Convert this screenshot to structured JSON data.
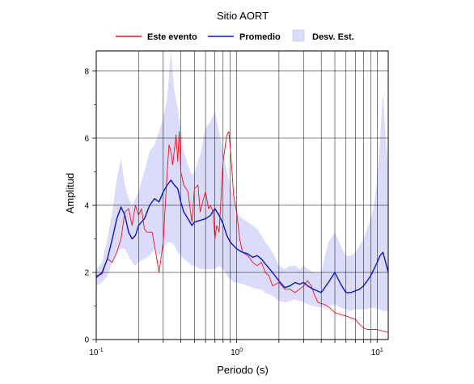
{
  "chart_data": {
    "type": "line",
    "title": "Sitio AORT",
    "xlabel": "Periodo (s)",
    "ylabel": "Amplitud",
    "xscale": "log",
    "xlim": [
      0.1,
      12
    ],
    "ylim": [
      0,
      8.6
    ],
    "grid": true,
    "legend": {
      "placement": "top",
      "entries": [
        "Este evento",
        "Promedio",
        "Desv. Est."
      ]
    },
    "x_tick_labels": [
      {
        "value": 0.1,
        "base": "10",
        "exp": "-1"
      },
      {
        "value": 1,
        "base": "10",
        "exp": "0"
      },
      {
        "value": 10,
        "base": "10",
        "exp": "1"
      }
    ],
    "y_tick_labels": [
      "0",
      "2",
      "4",
      "6",
      "8"
    ],
    "y_ticks": [
      0,
      2,
      4,
      6,
      8
    ],
    "series": [
      {
        "name": "Este evento",
        "color": "#e8151f",
        "points": [
          [
            0.1,
            1.9
          ],
          [
            0.11,
            1.95
          ],
          [
            0.12,
            2.4
          ],
          [
            0.13,
            2.3
          ],
          [
            0.14,
            2.6
          ],
          [
            0.15,
            3.0
          ],
          [
            0.16,
            3.8
          ],
          [
            0.17,
            3.9
          ],
          [
            0.18,
            3.4
          ],
          [
            0.19,
            4.0
          ],
          [
            0.2,
            3.7
          ],
          [
            0.21,
            3.9
          ],
          [
            0.22,
            3.3
          ],
          [
            0.23,
            3.2
          ],
          [
            0.25,
            3.2
          ],
          [
            0.27,
            2.4
          ],
          [
            0.28,
            2.0
          ],
          [
            0.3,
            2.9
          ],
          [
            0.32,
            5.0
          ],
          [
            0.33,
            5.8
          ],
          [
            0.34,
            5.6
          ],
          [
            0.35,
            5.2
          ],
          [
            0.37,
            6.1
          ],
          [
            0.38,
            5.3
          ],
          [
            0.39,
            6.2
          ],
          [
            0.4,
            5.0
          ],
          [
            0.42,
            4.6
          ],
          [
            0.45,
            4.4
          ],
          [
            0.48,
            3.5
          ],
          [
            0.5,
            4.5
          ],
          [
            0.53,
            4.6
          ],
          [
            0.55,
            3.8
          ],
          [
            0.58,
            4.2
          ],
          [
            0.6,
            4.4
          ],
          [
            0.63,
            3.9
          ],
          [
            0.65,
            4.0
          ],
          [
            0.68,
            3.8
          ],
          [
            0.7,
            3.0
          ],
          [
            0.72,
            3.4
          ],
          [
            0.75,
            3.2
          ],
          [
            0.78,
            4.5
          ],
          [
            0.8,
            5.3
          ],
          [
            0.85,
            6.1
          ],
          [
            0.88,
            6.2
          ],
          [
            0.92,
            5.2
          ],
          [
            0.95,
            4.3
          ],
          [
            1.0,
            3.8
          ],
          [
            1.05,
            3.0
          ],
          [
            1.1,
            2.6
          ],
          [
            1.2,
            2.5
          ],
          [
            1.3,
            2.3
          ],
          [
            1.4,
            2.2
          ],
          [
            1.5,
            2.3
          ],
          [
            1.6,
            2.0
          ],
          [
            1.7,
            1.9
          ],
          [
            1.8,
            1.6
          ],
          [
            2.0,
            1.7
          ],
          [
            2.2,
            1.5
          ],
          [
            2.4,
            1.5
          ],
          [
            2.6,
            1.4
          ],
          [
            2.8,
            1.5
          ],
          [
            3.0,
            1.6
          ],
          [
            3.2,
            1.75
          ],
          [
            3.4,
            1.6
          ],
          [
            3.6,
            1.3
          ],
          [
            3.8,
            1.1
          ],
          [
            4.2,
            1.05
          ],
          [
            4.6,
            0.95
          ],
          [
            5.0,
            0.8
          ],
          [
            5.5,
            0.75
          ],
          [
            6.0,
            0.7
          ],
          [
            6.5,
            0.65
          ],
          [
            7.0,
            0.6
          ],
          [
            7.5,
            0.45
          ],
          [
            8.0,
            0.35
          ],
          [
            8.5,
            0.3
          ],
          [
            9.0,
            0.3
          ],
          [
            10.0,
            0.3
          ],
          [
            11.0,
            0.25
          ],
          [
            12.0,
            0.22
          ]
        ]
      },
      {
        "name": "Promedio",
        "color": "#0a16c8",
        "points": [
          [
            0.1,
            1.85
          ],
          [
            0.11,
            2.0
          ],
          [
            0.12,
            2.4
          ],
          [
            0.13,
            3.0
          ],
          [
            0.14,
            3.6
          ],
          [
            0.15,
            3.95
          ],
          [
            0.16,
            3.7
          ],
          [
            0.17,
            3.2
          ],
          [
            0.18,
            3.0
          ],
          [
            0.19,
            3.1
          ],
          [
            0.2,
            3.4
          ],
          [
            0.22,
            3.6
          ],
          [
            0.24,
            4.0
          ],
          [
            0.26,
            4.2
          ],
          [
            0.28,
            4.1
          ],
          [
            0.3,
            4.4
          ],
          [
            0.32,
            4.6
          ],
          [
            0.34,
            4.75
          ],
          [
            0.36,
            4.6
          ],
          [
            0.38,
            4.5
          ],
          [
            0.4,
            4.1
          ],
          [
            0.42,
            3.8
          ],
          [
            0.45,
            3.6
          ],
          [
            0.48,
            3.4
          ],
          [
            0.5,
            3.5
          ],
          [
            0.55,
            3.55
          ],
          [
            0.6,
            3.6
          ],
          [
            0.65,
            3.7
          ],
          [
            0.7,
            3.9
          ],
          [
            0.75,
            3.7
          ],
          [
            0.8,
            3.45
          ],
          [
            0.85,
            3.1
          ],
          [
            0.9,
            2.9
          ],
          [
            0.95,
            2.8
          ],
          [
            1.0,
            2.7
          ],
          [
            1.1,
            2.6
          ],
          [
            1.2,
            2.55
          ],
          [
            1.3,
            2.45
          ],
          [
            1.4,
            2.5
          ],
          [
            1.5,
            2.4
          ],
          [
            1.6,
            2.25
          ],
          [
            1.8,
            2.0
          ],
          [
            2.0,
            1.75
          ],
          [
            2.2,
            1.55
          ],
          [
            2.4,
            1.6
          ],
          [
            2.6,
            1.7
          ],
          [
            2.8,
            1.65
          ],
          [
            3.0,
            1.7
          ],
          [
            3.2,
            1.6
          ],
          [
            3.5,
            1.5
          ],
          [
            4.0,
            1.4
          ],
          [
            4.5,
            1.7
          ],
          [
            5.0,
            2.0
          ],
          [
            5.5,
            1.65
          ],
          [
            6.0,
            1.4
          ],
          [
            6.5,
            1.4
          ],
          [
            7.0,
            1.45
          ],
          [
            7.5,
            1.5
          ],
          [
            8.0,
            1.6
          ],
          [
            8.5,
            1.75
          ],
          [
            9.0,
            1.9
          ],
          [
            9.5,
            2.1
          ],
          [
            10.0,
            2.3
          ],
          [
            10.5,
            2.5
          ],
          [
            11.0,
            2.6
          ],
          [
            11.5,
            2.3
          ],
          [
            12.0,
            2.0
          ]
        ]
      }
    ],
    "band": {
      "name": "Desv. Est.",
      "color": "#dcdcfa",
      "upper": [
        [
          0.1,
          2.1
        ],
        [
          0.11,
          2.3
        ],
        [
          0.12,
          3.0
        ],
        [
          0.13,
          3.8
        ],
        [
          0.14,
          4.8
        ],
        [
          0.15,
          5.4
        ],
        [
          0.16,
          4.6
        ],
        [
          0.17,
          4.2
        ],
        [
          0.18,
          4.0
        ],
        [
          0.19,
          4.2
        ],
        [
          0.2,
          4.4
        ],
        [
          0.22,
          5.0
        ],
        [
          0.24,
          5.6
        ],
        [
          0.26,
          5.8
        ],
        [
          0.28,
          6.2
        ],
        [
          0.3,
          6.6
        ],
        [
          0.32,
          7.2
        ],
        [
          0.34,
          8.6
        ],
        [
          0.36,
          7.4
        ],
        [
          0.38,
          6.9
        ],
        [
          0.4,
          6.3
        ],
        [
          0.42,
          5.6
        ],
        [
          0.45,
          5.2
        ],
        [
          0.48,
          4.9
        ],
        [
          0.5,
          5.0
        ],
        [
          0.55,
          5.5
        ],
        [
          0.6,
          6.3
        ],
        [
          0.65,
          6.5
        ],
        [
          0.7,
          6.8
        ],
        [
          0.75,
          6.2
        ],
        [
          0.8,
          5.6
        ],
        [
          0.85,
          5.0
        ],
        [
          0.9,
          4.6
        ],
        [
          0.95,
          4.2
        ],
        [
          1.0,
          3.8
        ],
        [
          1.1,
          3.6
        ],
        [
          1.2,
          3.5
        ],
        [
          1.3,
          3.4
        ],
        [
          1.4,
          3.3
        ],
        [
          1.5,
          3.1
        ],
        [
          1.6,
          2.9
        ],
        [
          1.8,
          2.6
        ],
        [
          2.0,
          2.2
        ],
        [
          2.2,
          2.1
        ],
        [
          2.4,
          2.2
        ],
        [
          2.6,
          2.2
        ],
        [
          2.8,
          2.1
        ],
        [
          3.0,
          2.2
        ],
        [
          3.2,
          2.1
        ],
        [
          3.5,
          2.0
        ],
        [
          4.0,
          2.0
        ],
        [
          4.5,
          2.9
        ],
        [
          5.0,
          3.2
        ],
        [
          5.5,
          2.8
        ],
        [
          6.0,
          2.5
        ],
        [
          6.5,
          2.5
        ],
        [
          7.0,
          2.6
        ],
        [
          7.5,
          2.8
        ],
        [
          8.0,
          3.0
        ],
        [
          8.5,
          3.3
        ],
        [
          9.0,
          3.6
        ],
        [
          9.5,
          4.0
        ],
        [
          10.0,
          4.8
        ],
        [
          10.5,
          6.0
        ],
        [
          11.0,
          7.4
        ],
        [
          11.5,
          6.0
        ],
        [
          12.0,
          5.2
        ]
      ],
      "lower": [
        [
          0.1,
          1.6
        ],
        [
          0.11,
          1.7
        ],
        [
          0.12,
          1.9
        ],
        [
          0.13,
          2.3
        ],
        [
          0.14,
          2.6
        ],
        [
          0.15,
          2.7
        ],
        [
          0.16,
          2.7
        ],
        [
          0.17,
          2.5
        ],
        [
          0.18,
          2.3
        ],
        [
          0.19,
          2.2
        ],
        [
          0.2,
          2.3
        ],
        [
          0.22,
          2.4
        ],
        [
          0.24,
          2.5
        ],
        [
          0.26,
          2.7
        ],
        [
          0.28,
          2.5
        ],
        [
          0.3,
          2.7
        ],
        [
          0.32,
          2.9
        ],
        [
          0.34,
          2.9
        ],
        [
          0.36,
          2.8
        ],
        [
          0.38,
          2.6
        ],
        [
          0.4,
          2.5
        ],
        [
          0.42,
          2.4
        ],
        [
          0.45,
          2.3
        ],
        [
          0.48,
          2.2
        ],
        [
          0.5,
          2.2
        ],
        [
          0.55,
          2.1
        ],
        [
          0.6,
          2.1
        ],
        [
          0.65,
          2.1
        ],
        [
          0.7,
          2.1
        ],
        [
          0.75,
          2.2
        ],
        [
          0.8,
          2.1
        ],
        [
          0.85,
          1.9
        ],
        [
          0.9,
          1.8
        ],
        [
          0.95,
          1.7
        ],
        [
          1.0,
          1.7
        ],
        [
          1.1,
          1.65
        ],
        [
          1.2,
          1.6
        ],
        [
          1.3,
          1.55
        ],
        [
          1.4,
          1.5
        ],
        [
          1.5,
          1.5
        ],
        [
          1.6,
          1.4
        ],
        [
          1.8,
          1.3
        ],
        [
          2.0,
          1.15
        ],
        [
          2.2,
          1.1
        ],
        [
          2.4,
          1.15
        ],
        [
          2.6,
          1.2
        ],
        [
          2.8,
          1.15
        ],
        [
          3.0,
          1.1
        ],
        [
          3.2,
          1.05
        ],
        [
          3.5,
          1.0
        ],
        [
          4.0,
          0.95
        ],
        [
          4.5,
          1.0
        ],
        [
          5.0,
          1.05
        ],
        [
          5.5,
          0.95
        ],
        [
          6.0,
          0.9
        ],
        [
          6.5,
          0.85
        ],
        [
          7.0,
          0.9
        ],
        [
          7.5,
          0.9
        ],
        [
          8.0,
          0.9
        ],
        [
          8.5,
          0.9
        ],
        [
          9.0,
          0.95
        ],
        [
          9.5,
          0.95
        ],
        [
          10.0,
          0.9
        ],
        [
          10.5,
          0.9
        ],
        [
          11.0,
          0.85
        ],
        [
          11.5,
          0.85
        ],
        [
          12.0,
          0.85
        ]
      ]
    }
  }
}
